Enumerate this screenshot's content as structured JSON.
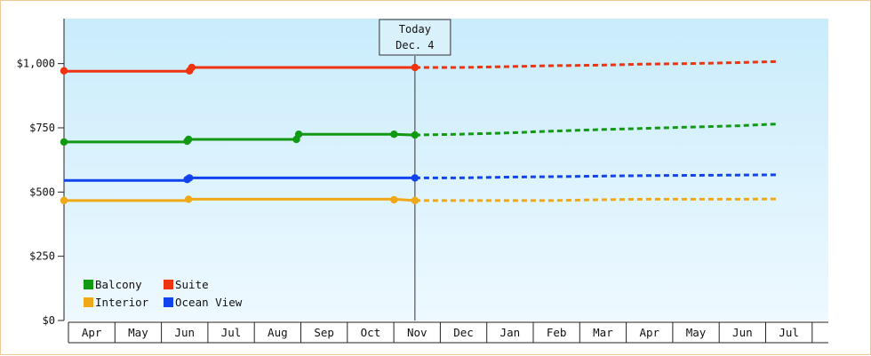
{
  "chart_data": {
    "type": "line",
    "months": [
      "Apr",
      "May",
      "Jun",
      "Jul",
      "Aug",
      "Sep",
      "Oct",
      "Nov",
      "Dec",
      "Jan",
      "Feb",
      "Mar",
      "Apr",
      "May",
      "Jun",
      "Jul"
    ],
    "today": {
      "line1": "Today",
      "line2": "Dec. 4",
      "month_index": 7.55
    },
    "ylim": [
      0,
      1175
    ],
    "yticks": [
      {
        "value": 0,
        "label": "$0"
      },
      {
        "value": 250,
        "label": "$250"
      },
      {
        "value": 500,
        "label": "$500"
      },
      {
        "value": 750,
        "label": "$750"
      },
      {
        "value": 1000,
        "label": "$1,000"
      }
    ],
    "grid": false,
    "legend_position": "bottom-left",
    "series": [
      {
        "name": "Balcony",
        "color": "#119911",
        "history": [
          [
            0,
            695
          ],
          [
            2.65,
            695
          ],
          [
            2.68,
            705
          ],
          [
            5.0,
            705
          ],
          [
            5.05,
            725
          ],
          [
            7.1,
            725
          ],
          [
            7.55,
            722
          ]
        ],
        "markers": [
          [
            0,
            695
          ],
          [
            2.65,
            698
          ],
          [
            2.68,
            705
          ],
          [
            5.0,
            705
          ],
          [
            5.05,
            725
          ],
          [
            7.1,
            725
          ],
          [
            7.55,
            722
          ]
        ],
        "forecast": [
          [
            7.55,
            722
          ],
          [
            8.5,
            725
          ],
          [
            9.5,
            730
          ],
          [
            10.5,
            737
          ],
          [
            11.5,
            743
          ],
          [
            12.5,
            748
          ],
          [
            13.5,
            753
          ],
          [
            14.5,
            758
          ],
          [
            15.35,
            765
          ]
        ]
      },
      {
        "name": "Suite",
        "color": "#ee3311",
        "history": [
          [
            0,
            970
          ],
          [
            2.7,
            970
          ],
          [
            2.75,
            985
          ],
          [
            7.55,
            985
          ]
        ],
        "markers": [
          [
            0,
            972
          ],
          [
            2.7,
            972
          ],
          [
            2.75,
            985
          ],
          [
            7.55,
            985
          ]
        ],
        "forecast": [
          [
            7.55,
            985
          ],
          [
            8.5,
            985
          ],
          [
            9.5,
            988
          ],
          [
            10.5,
            992
          ],
          [
            11.5,
            994
          ],
          [
            12.5,
            998
          ],
          [
            13.5,
            1000
          ],
          [
            14.5,
            1004
          ],
          [
            15.35,
            1008
          ]
        ]
      },
      {
        "name": "Interior",
        "color": "#f0a818",
        "history": [
          [
            0,
            467
          ],
          [
            2.65,
            467
          ],
          [
            2.68,
            472
          ],
          [
            7.1,
            472
          ],
          [
            7.55,
            467
          ]
        ],
        "markers": [
          [
            0,
            467
          ],
          [
            2.68,
            472
          ],
          [
            7.1,
            470
          ],
          [
            7.55,
            467
          ]
        ],
        "forecast": [
          [
            7.55,
            467
          ],
          [
            8.5,
            467
          ],
          [
            10.5,
            467
          ],
          [
            11.5,
            470
          ],
          [
            12.5,
            472
          ],
          [
            14.5,
            472
          ],
          [
            15.35,
            473
          ]
        ]
      },
      {
        "name": "Ocean View",
        "color": "#1144ee",
        "history": [
          [
            0,
            545
          ],
          [
            2.65,
            545
          ],
          [
            2.7,
            555
          ],
          [
            7.55,
            555
          ]
        ],
        "markers": [
          [
            2.65,
            549
          ],
          [
            2.7,
            555
          ],
          [
            7.55,
            555
          ]
        ],
        "forecast": [
          [
            7.55,
            555
          ],
          [
            8.5,
            555
          ],
          [
            9.5,
            558
          ],
          [
            10.5,
            560
          ],
          [
            11.5,
            562
          ],
          [
            12.5,
            564
          ],
          [
            13.5,
            565
          ],
          [
            14.5,
            566
          ],
          [
            15.35,
            567
          ]
        ]
      }
    ]
  }
}
